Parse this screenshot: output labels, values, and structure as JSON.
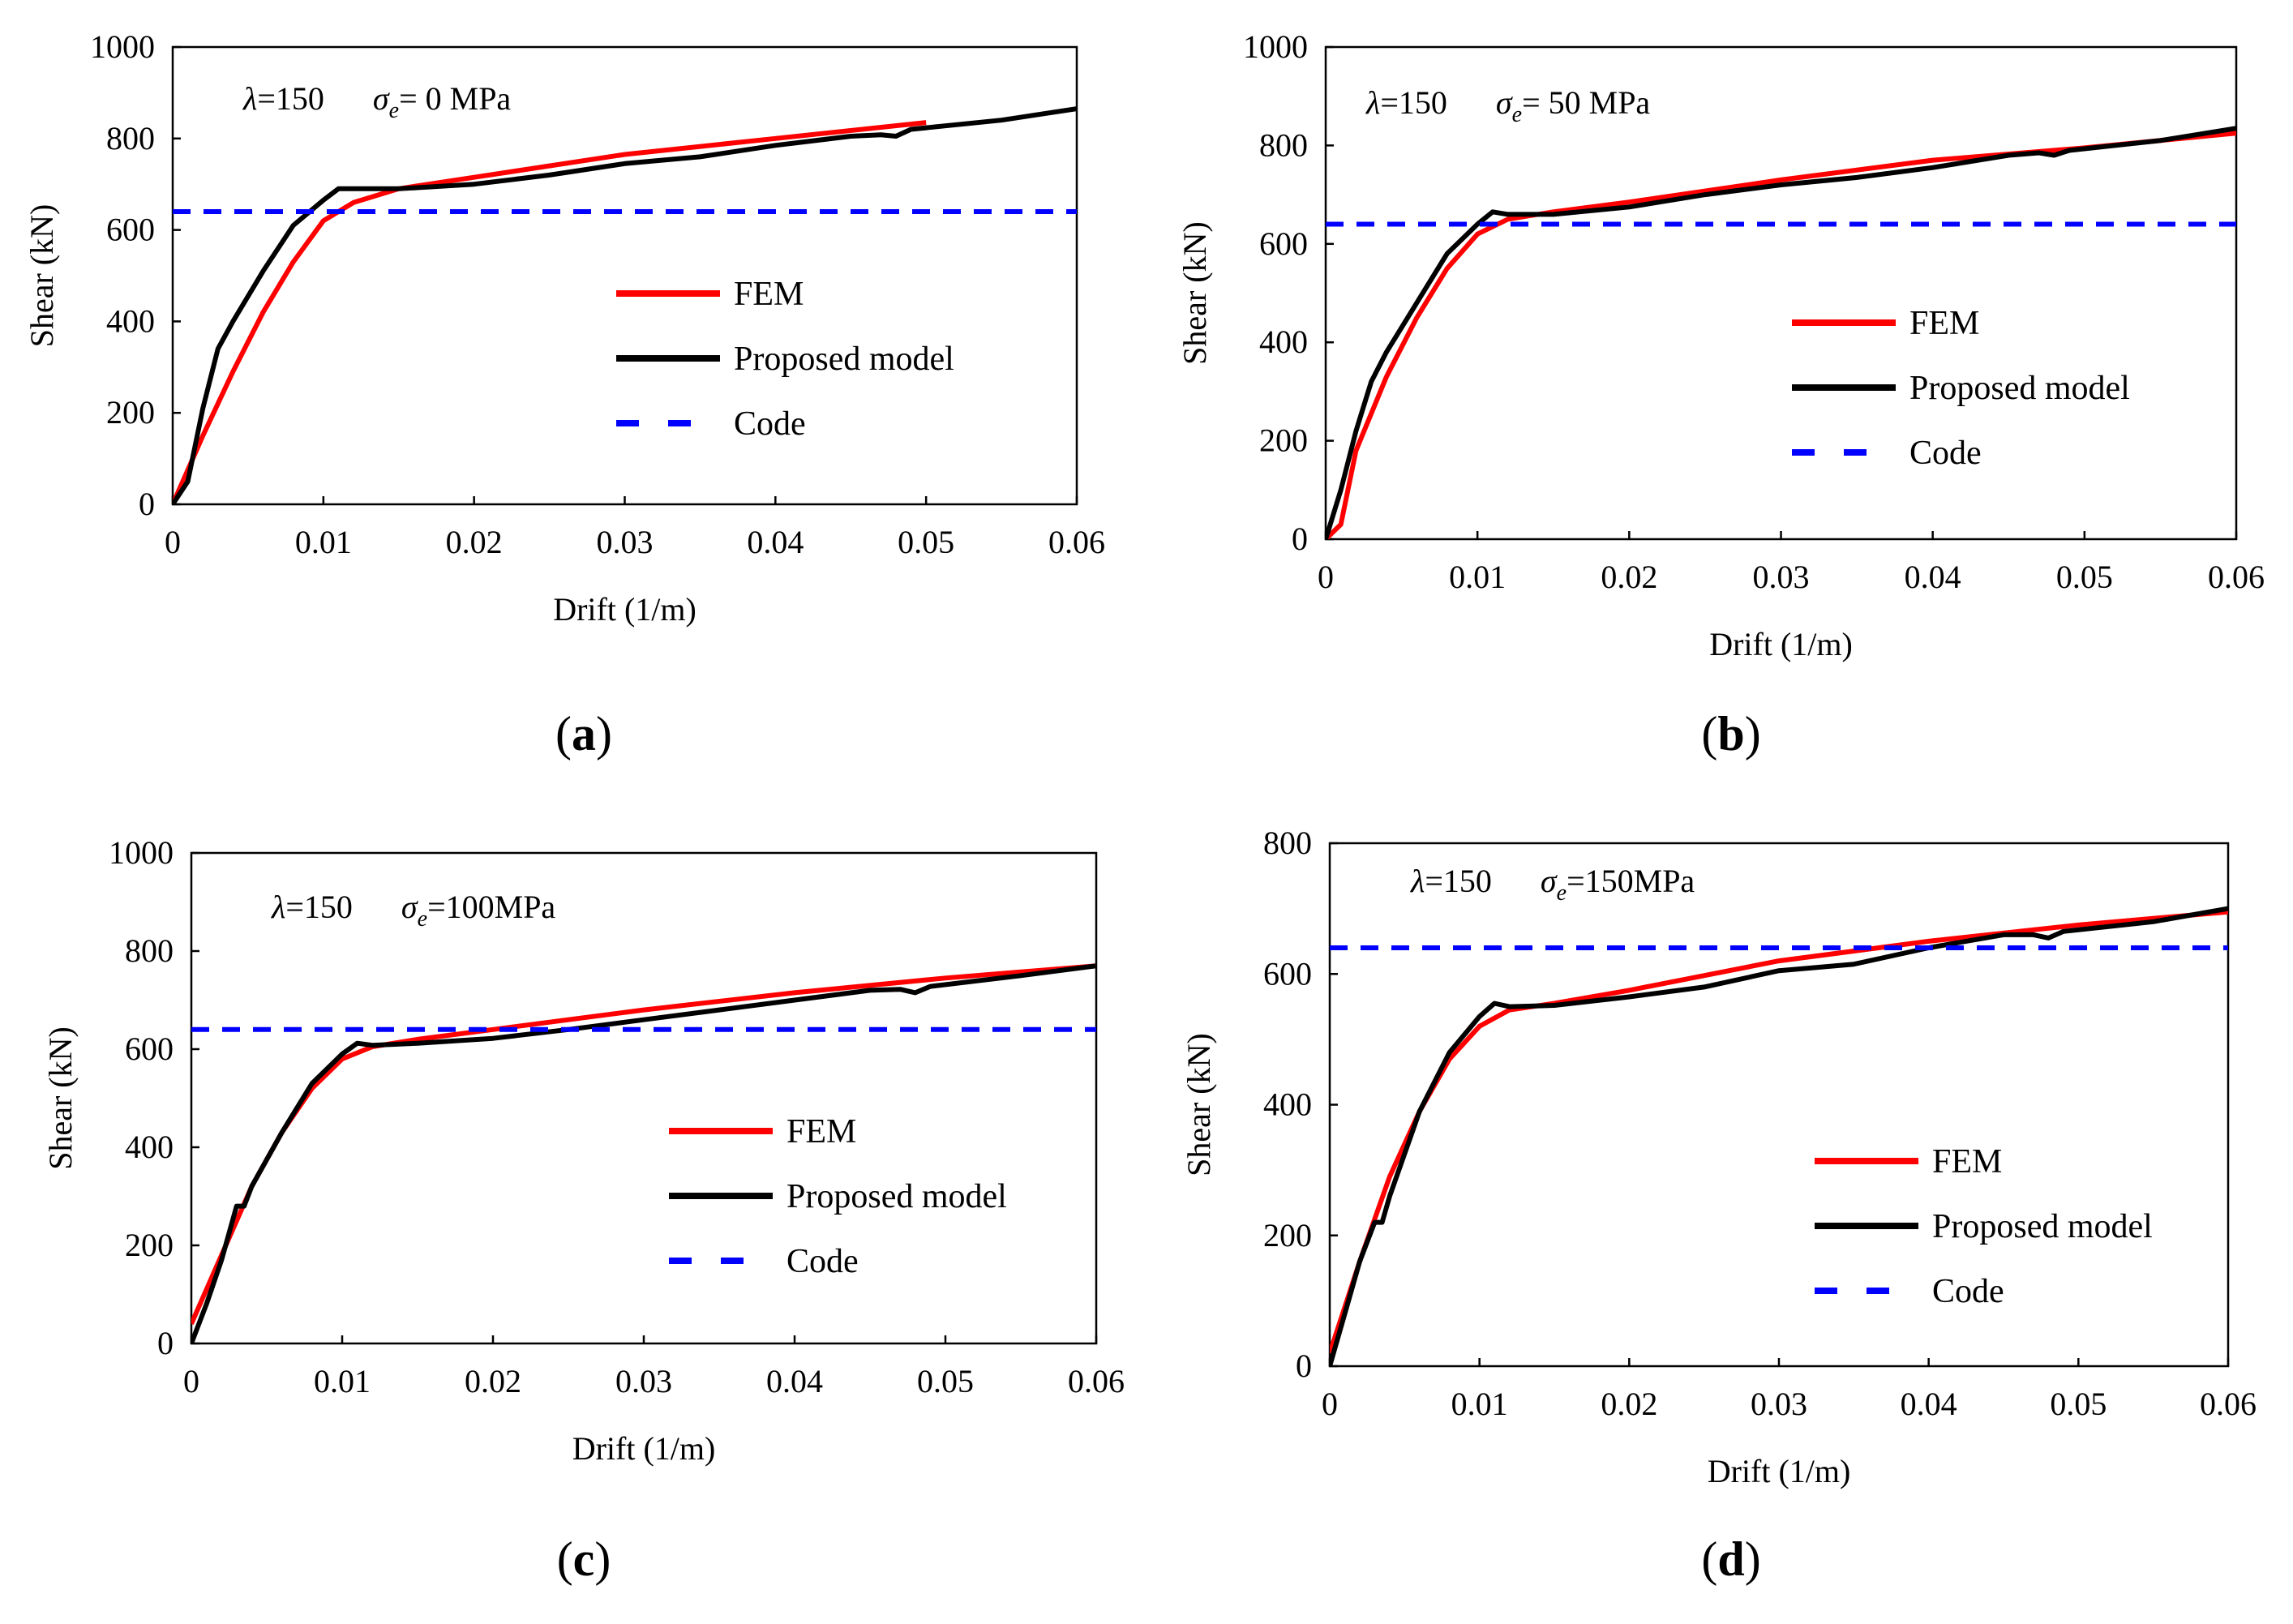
{
  "colors": {
    "fem": "#ff0000",
    "proposed": "#000000",
    "code": "#0000ff",
    "axis": "#000000"
  },
  "chart_data": [
    {
      "type": "line",
      "panel_label": "a",
      "annotation": {
        "lambda": "λ=150",
        "sigma_symbol": "σ",
        "sigma_sub": "e",
        "sigma_value": "= 0 MPa"
      },
      "xlabel": "Drift (1/m)",
      "ylabel": "Shear (kN)",
      "xlim": [
        0,
        0.06
      ],
      "ylim": [
        0,
        1000
      ],
      "xticks": [
        0,
        0.01,
        0.02,
        0.03,
        0.04,
        0.05,
        0.06
      ],
      "xtick_labels": [
        "0",
        "0.01",
        "0.02",
        "0.03",
        "0.04",
        "0.05",
        "0.06"
      ],
      "yticks": [
        0,
        200,
        400,
        600,
        800,
        1000
      ],
      "ytick_labels": [
        "0",
        "200",
        "400",
        "600",
        "800",
        "1000"
      ],
      "legend": [
        "FEM",
        "Proposed model",
        "Code"
      ],
      "series": [
        {
          "name": "FEM",
          "x": [
            0,
            0.002,
            0.004,
            0.006,
            0.008,
            0.01,
            0.012,
            0.015,
            0.02,
            0.03,
            0.04,
            0.05
          ],
          "y": [
            0,
            150,
            290,
            420,
            530,
            620,
            660,
            690,
            715,
            765,
            800,
            835
          ]
        },
        {
          "name": "Proposed model",
          "x": [
            0,
            0.001,
            0.002,
            0.003,
            0.004,
            0.006,
            0.008,
            0.01,
            0.011,
            0.012,
            0.015,
            0.02,
            0.025,
            0.03,
            0.035,
            0.04,
            0.045,
            0.047,
            0.048,
            0.049,
            0.055,
            0.06
          ],
          "y": [
            0,
            50,
            210,
            340,
            400,
            510,
            610,
            665,
            690,
            690,
            690,
            700,
            720,
            745,
            760,
            785,
            805,
            808,
            805,
            820,
            840,
            865
          ]
        },
        {
          "name": "Code",
          "x": [
            0,
            0.06
          ],
          "y": [
            640,
            640
          ]
        }
      ]
    },
    {
      "type": "line",
      "panel_label": "b",
      "annotation": {
        "lambda": "λ=150",
        "sigma_symbol": "σ",
        "sigma_sub": "e",
        "sigma_value": "= 50 MPa"
      },
      "xlabel": "Drift (1/m)",
      "ylabel": "Shear (kN)",
      "xlim": [
        0,
        0.06
      ],
      "ylim": [
        0,
        1000
      ],
      "xticks": [
        0,
        0.01,
        0.02,
        0.03,
        0.04,
        0.05,
        0.06
      ],
      "xtick_labels": [
        "0",
        "0.01",
        "0.02",
        "0.03",
        "0.04",
        "0.05",
        "0.06"
      ],
      "yticks": [
        0,
        200,
        400,
        600,
        800,
        1000
      ],
      "ytick_labels": [
        "0",
        "200",
        "400",
        "600",
        "800",
        "1000"
      ],
      "legend": [
        "FEM",
        "Proposed model",
        "Code"
      ],
      "series": [
        {
          "name": "FEM",
          "x": [
            0,
            0.001,
            0.002,
            0.004,
            0.006,
            0.008,
            0.01,
            0.012,
            0.015,
            0.02,
            0.03,
            0.04,
            0.05,
            0.06
          ],
          "y": [
            0,
            30,
            180,
            330,
            450,
            550,
            620,
            650,
            665,
            685,
            730,
            770,
            795,
            825
          ]
        },
        {
          "name": "Proposed model",
          "x": [
            0,
            0.001,
            0.002,
            0.003,
            0.004,
            0.006,
            0.008,
            0.01,
            0.011,
            0.012,
            0.015,
            0.02,
            0.025,
            0.03,
            0.035,
            0.04,
            0.045,
            0.047,
            0.048,
            0.049,
            0.055,
            0.06
          ],
          "y": [
            0,
            100,
            220,
            320,
            380,
            480,
            580,
            640,
            665,
            660,
            660,
            675,
            700,
            720,
            735,
            755,
            780,
            785,
            780,
            790,
            810,
            835
          ]
        },
        {
          "name": "Code",
          "x": [
            0,
            0.06
          ],
          "y": [
            640,
            640
          ]
        }
      ]
    },
    {
      "type": "line",
      "panel_label": "c",
      "annotation": {
        "lambda": "λ=150",
        "sigma_symbol": "σ",
        "sigma_sub": "e",
        "sigma_value": "=100MPa"
      },
      "xlabel": "Drift (1/m)",
      "ylabel": "Shear (kN)",
      "xlim": [
        0,
        0.06
      ],
      "ylim": [
        0,
        1000
      ],
      "xticks": [
        0,
        0.01,
        0.02,
        0.03,
        0.04,
        0.05,
        0.06
      ],
      "xtick_labels": [
        "0",
        "0.01",
        "0.02",
        "0.03",
        "0.04",
        "0.05",
        "0.06"
      ],
      "yticks": [
        0,
        200,
        400,
        600,
        800,
        1000
      ],
      "ytick_labels": [
        "0",
        "200",
        "400",
        "600",
        "800",
        "1000"
      ],
      "legend": [
        "FEM",
        "Proposed model",
        "Code"
      ],
      "series": [
        {
          "name": "FEM",
          "x": [
            0,
            0.002,
            0.004,
            0.006,
            0.008,
            0.01,
            0.012,
            0.015,
            0.02,
            0.03,
            0.04,
            0.05,
            0.06
          ],
          "y": [
            40,
            180,
            320,
            430,
            520,
            580,
            605,
            620,
            640,
            680,
            715,
            745,
            770
          ]
        },
        {
          "name": "Proposed model",
          "x": [
            0,
            0.001,
            0.002,
            0.003,
            0.0035,
            0.004,
            0.006,
            0.008,
            0.01,
            0.011,
            0.012,
            0.015,
            0.02,
            0.025,
            0.03,
            0.035,
            0.04,
            0.045,
            0.047,
            0.048,
            0.049,
            0.055,
            0.06
          ],
          "y": [
            0,
            80,
            170,
            280,
            280,
            320,
            430,
            530,
            590,
            612,
            608,
            612,
            622,
            640,
            660,
            680,
            700,
            720,
            722,
            715,
            728,
            750,
            770
          ]
        },
        {
          "name": "Code",
          "x": [
            0,
            0.06
          ],
          "y": [
            640,
            640
          ]
        }
      ]
    },
    {
      "type": "line",
      "panel_label": "d",
      "annotation": {
        "lambda": "λ=150",
        "sigma_symbol": "σ",
        "sigma_sub": "e",
        "sigma_value": "=150MPa"
      },
      "xlabel": "Drift (1/m)",
      "ylabel": "Shear (kN)",
      "xlim": [
        0,
        0.06
      ],
      "ylim": [
        0,
        800
      ],
      "xticks": [
        0,
        0.01,
        0.02,
        0.03,
        0.04,
        0.05,
        0.06
      ],
      "xtick_labels": [
        "0",
        "0.01",
        "0.02",
        "0.03",
        "0.04",
        "0.05",
        "0.06"
      ],
      "yticks": [
        0,
        200,
        400,
        600,
        800
      ],
      "ytick_labels": [
        "0",
        "200",
        "400",
        "600",
        "800"
      ],
      "legend": [
        "FEM",
        "Proposed model",
        "Code"
      ],
      "series": [
        {
          "name": "FEM",
          "x": [
            0,
            0.002,
            0.004,
            0.006,
            0.008,
            0.01,
            0.012,
            0.015,
            0.02,
            0.03,
            0.04,
            0.05,
            0.06
          ],
          "y": [
            20,
            160,
            290,
            390,
            470,
            520,
            545,
            555,
            575,
            620,
            650,
            675,
            695
          ]
        },
        {
          "name": "Proposed model",
          "x": [
            0,
            0.001,
            0.002,
            0.003,
            0.0035,
            0.004,
            0.006,
            0.008,
            0.01,
            0.011,
            0.012,
            0.015,
            0.02,
            0.025,
            0.03,
            0.035,
            0.04,
            0.045,
            0.047,
            0.048,
            0.049,
            0.055,
            0.06
          ],
          "y": [
            0,
            80,
            160,
            220,
            220,
            260,
            390,
            480,
            535,
            555,
            550,
            552,
            565,
            580,
            605,
            615,
            640,
            660,
            660,
            655,
            665,
            680,
            700
          ]
        },
        {
          "name": "Code",
          "x": [
            0,
            0.06
          ],
          "y": [
            640,
            640
          ]
        }
      ]
    }
  ]
}
